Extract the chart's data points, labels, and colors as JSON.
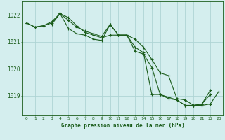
{
  "title": "Graphe pression niveau de la mer (hPa)",
  "background_color": "#d4eeee",
  "grid_color": "#aed4d4",
  "line_color": "#1a5c1a",
  "x_labels": [
    "0",
    "1",
    "2",
    "3",
    "4",
    "5",
    "6",
    "7",
    "8",
    "9",
    "10",
    "11",
    "12",
    "13",
    "14",
    "15",
    "16",
    "17",
    "18",
    "19",
    "20",
    "21",
    "22",
    "23"
  ],
  "ylim": [
    1018.3,
    1022.5
  ],
  "yticks": [
    1019,
    1020,
    1021,
    1022
  ],
  "line1": [
    1021.7,
    1021.55,
    1021.6,
    1021.7,
    1022.05,
    1021.8,
    1021.55,
    1021.4,
    1021.3,
    1021.2,
    1021.65,
    1021.25,
    1021.25,
    1020.8,
    1020.6,
    1019.05,
    1019.05,
    1018.9,
    1018.85,
    1018.65,
    1018.65,
    1018.7,
    1019.2,
    null
  ],
  "line2": [
    1021.7,
    1021.55,
    1021.6,
    1021.75,
    1022.05,
    1021.9,
    1021.6,
    1021.35,
    1021.25,
    1021.15,
    1021.25,
    1021.25,
    1021.25,
    1021.1,
    1020.8,
    1020.35,
    1019.85,
    1019.75,
    1018.9,
    1018.85,
    1018.65,
    1018.65,
    1018.7,
    1019.15
  ],
  "line3": [
    1021.7,
    null,
    null,
    1021.65,
    1022.05,
    1021.5,
    1021.3,
    1021.25,
    1021.1,
    1021.05,
    1021.65,
    1021.25,
    1021.25,
    1020.65,
    1020.55,
    1020.05,
    1019.05,
    1018.95,
    1018.85,
    1018.65,
    1018.65,
    1018.7,
    1019.05,
    null
  ]
}
